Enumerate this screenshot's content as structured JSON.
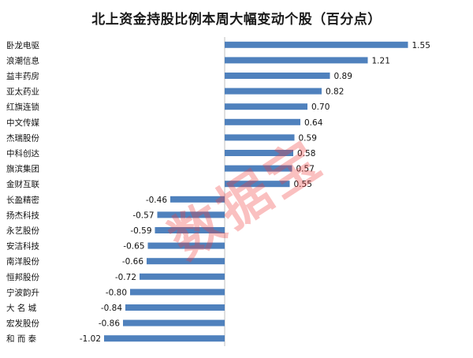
{
  "title": "北上资金持股比例本周大幅变动个股（百分点）",
  "watermark_text": "数据宝",
  "colors": {
    "bar": "#4F81BD",
    "axis": "#bfbfbf",
    "watermark": "#f03c3c"
  },
  "chart_data": {
    "type": "bar",
    "orientation": "horizontal",
    "title": "北上资金持股比例本周大幅变动个股（百分点）",
    "xlabel": "",
    "ylabel": "",
    "grid": false,
    "legend": "none",
    "xlim": [
      -1.1,
      1.6
    ],
    "categories": [
      "卧龙电驱",
      "浪潮信息",
      "益丰药房",
      "亚太药业",
      "红旗连锁",
      "中文传媒",
      "杰瑞股份",
      "中科创达",
      "旗滨集团",
      "金财互联",
      "长盈精密",
      "扬杰科技",
      "永艺股份",
      "安洁科技",
      "南洋股份",
      "恒邦股份",
      "宁波韵升",
      "大 名 城",
      "宏发股份",
      "和 而 泰"
    ],
    "values": [
      1.55,
      1.21,
      0.89,
      0.82,
      0.7,
      0.64,
      0.59,
      0.58,
      0.57,
      0.55,
      -0.46,
      -0.57,
      -0.59,
      -0.65,
      -0.66,
      -0.72,
      -0.8,
      -0.84,
      -0.86,
      -1.02
    ],
    "value_labels": [
      "1.55",
      "1.21",
      "0.89",
      "0.82",
      "0.70",
      "0.64",
      "0.59",
      "0.58",
      "0.57",
      "0.55",
      "-0.46",
      "-0.57",
      "-0.59",
      "-0.65",
      "-0.66",
      "-0.72",
      "-0.80",
      "-0.84",
      "-0.86",
      "-1.02"
    ]
  }
}
